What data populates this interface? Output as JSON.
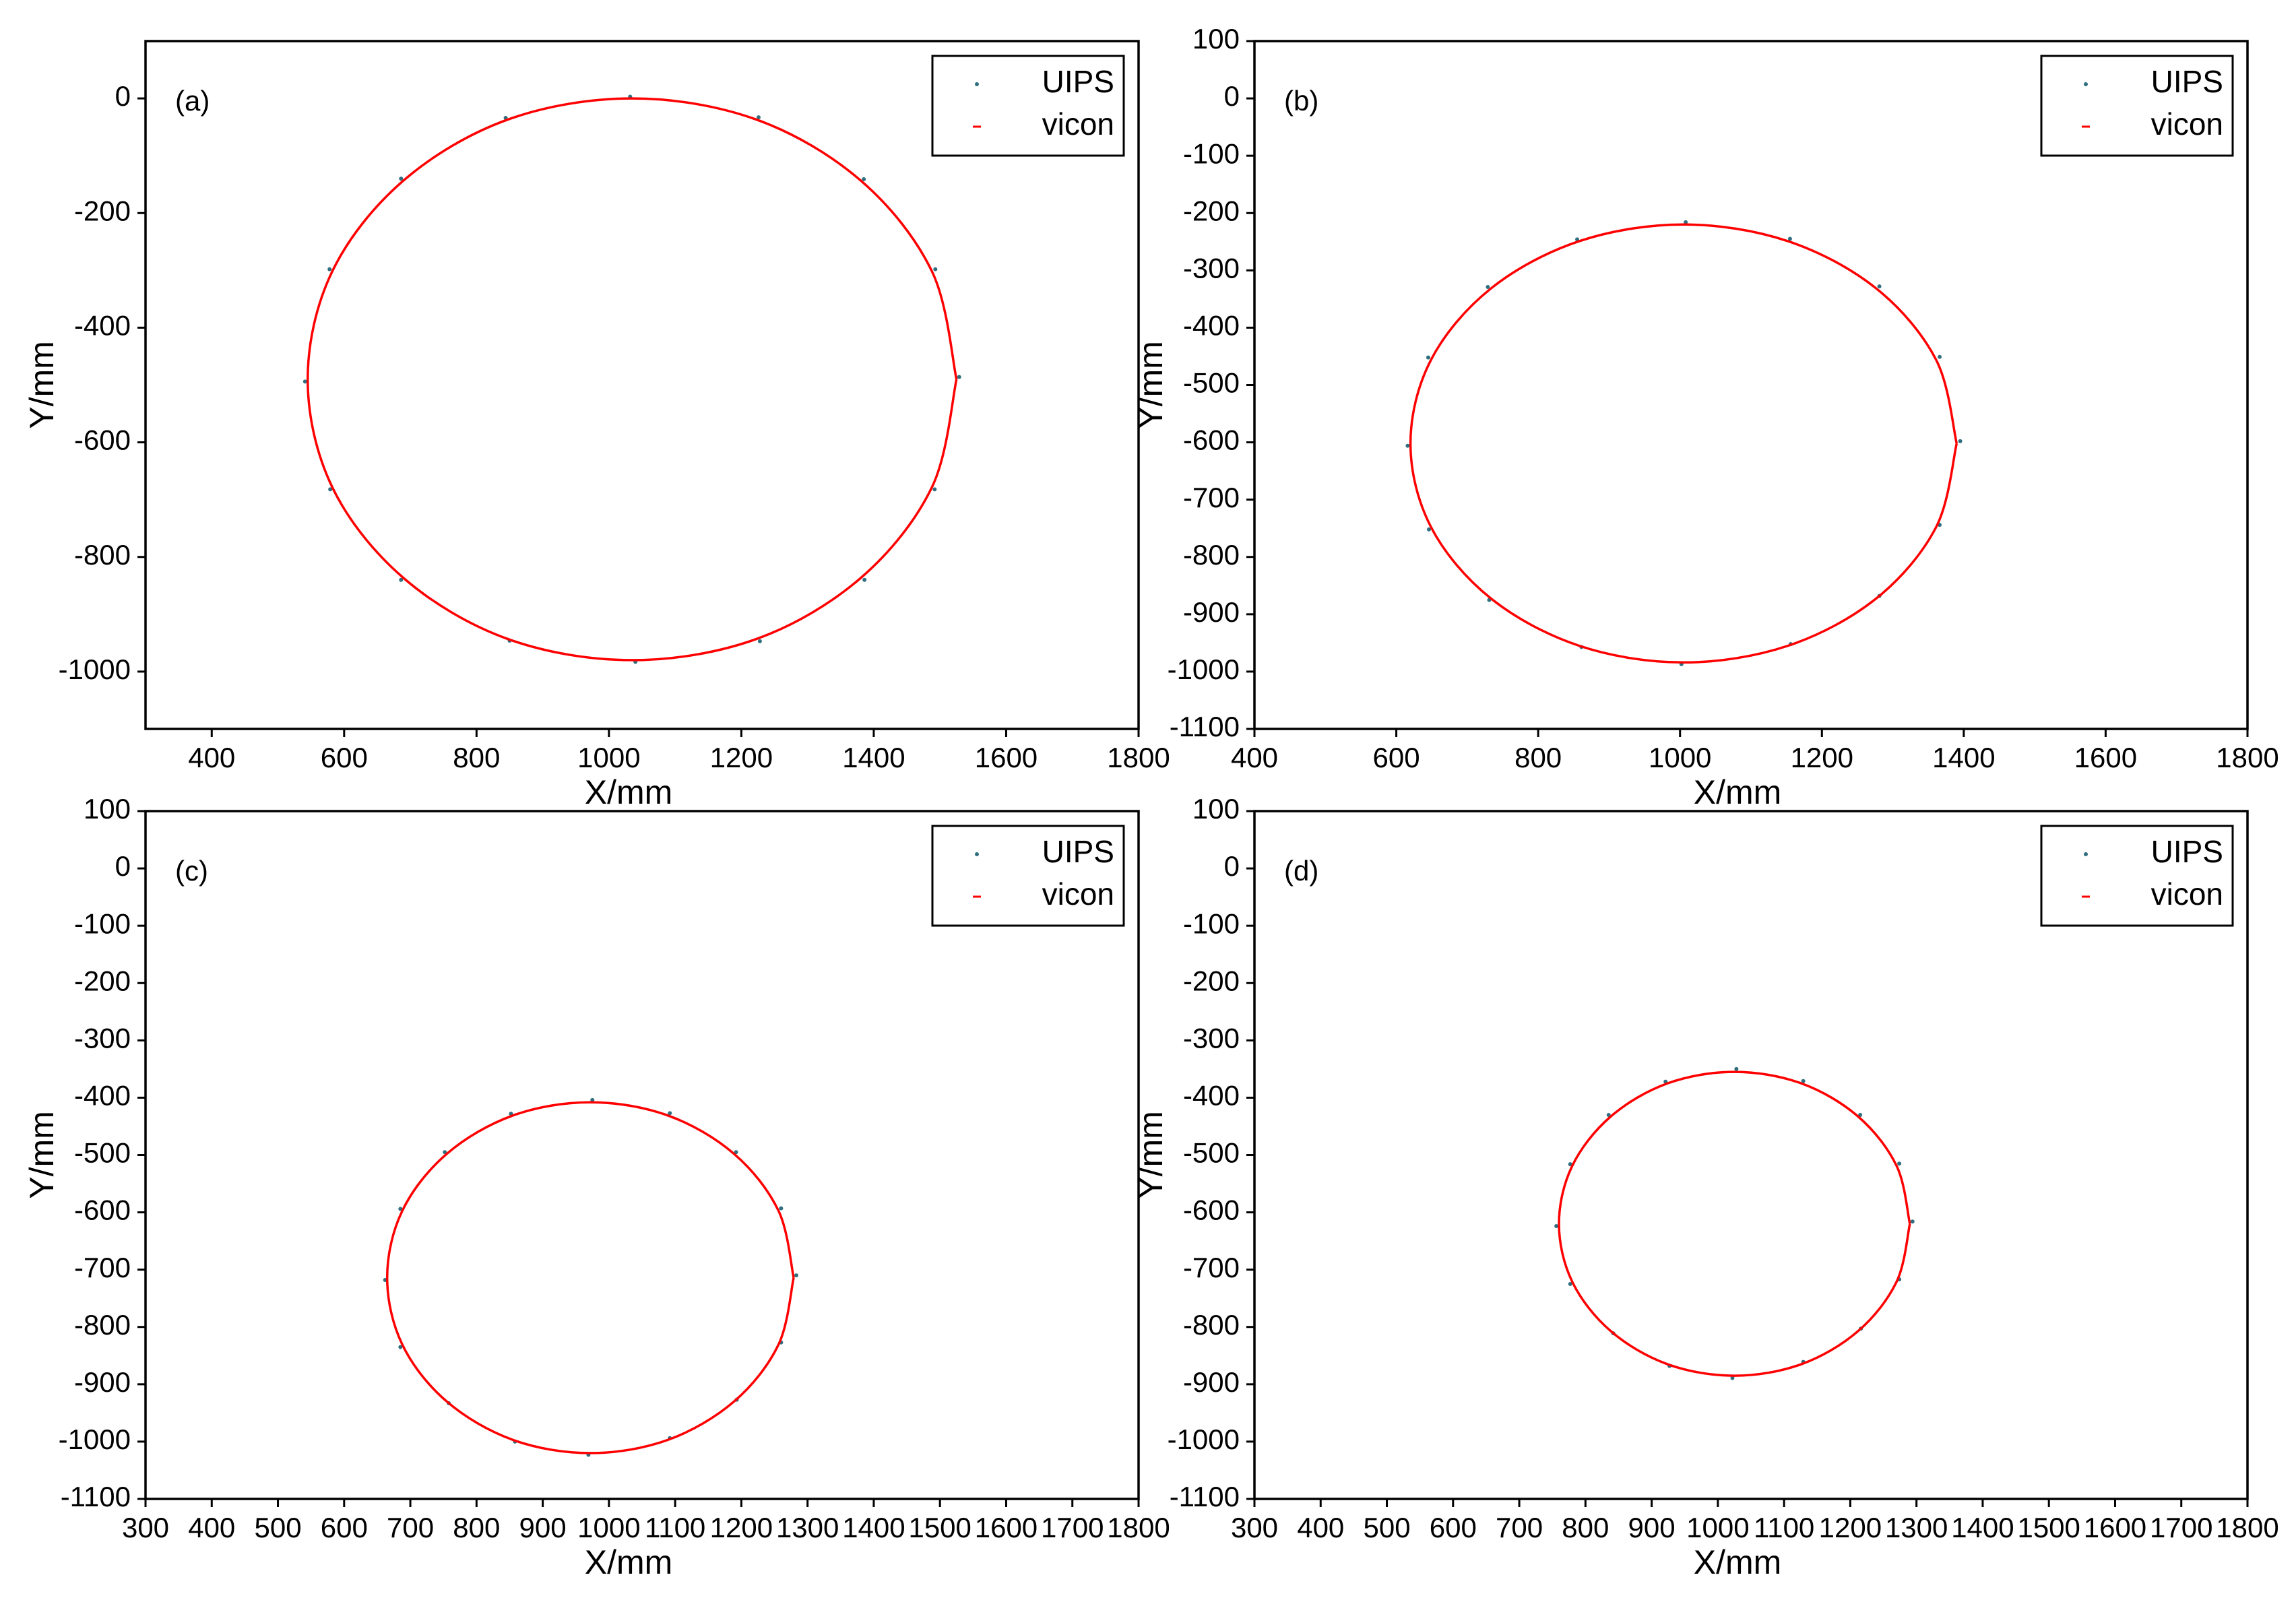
{
  "chart_data": [
    {
      "type": "scatter",
      "label": "(a)",
      "x_label": "X/mm",
      "y_label": "Y/mm",
      "xlim": [
        300,
        1800
      ],
      "xticks": [
        400,
        600,
        800,
        1000,
        1200,
        1400,
        1600,
        1800
      ],
      "ylim": [
        -1100,
        100
      ],
      "yticks": [
        0,
        -200,
        -400,
        -600,
        -800,
        -1000
      ],
      "legend": "upper right",
      "series": [
        {
          "name": "UIPS",
          "color": "#2f6f7f",
          "type": "scatter",
          "x": [
            1529,
            1493,
            1385,
            1226,
            1032,
            844,
            686,
            578,
            541,
            579,
            686,
            850,
            1040,
            1228,
            1386,
            1492
          ],
          "y": [
            -486,
            -298,
            -141,
            -33,
            3,
            -34,
            -140,
            -298,
            -494,
            -682,
            -840,
            -946,
            -983,
            -947,
            -840,
            -682
          ]
        },
        {
          "name": "vicon",
          "color": "#ff0000",
          "type": "line",
          "x": [
            1525,
            1488,
            1381,
            1223,
            1035,
            847,
            689,
            582,
            545,
            582,
            689,
            847,
            1035,
            1223,
            1381,
            1488,
            1525
          ],
          "y": [
            -490,
            -302,
            -144,
            -37,
            0,
            -37,
            -144,
            -302,
            -490,
            -678,
            -836,
            -943,
            -980,
            -943,
            -836,
            -678,
            -490
          ]
        }
      ]
    },
    {
      "type": "scatter",
      "label": "(b)",
      "x_label": "X/mm",
      "y_label": "Y/mm",
      "xlim": [
        400,
        1800
      ],
      "xticks": [
        400,
        600,
        800,
        1000,
        1200,
        1400,
        1600,
        1800
      ],
      "ylim": [
        -1100,
        100
      ],
      "yticks": [
        100,
        0,
        -100,
        -200,
        -300,
        -400,
        -500,
        -600,
        -700,
        -800,
        -900,
        -1000,
        -1100
      ],
      "legend": "upper right",
      "series": [
        {
          "name": "UIPS",
          "color": "#2f6f7f",
          "type": "scatter",
          "x": [
            1395,
            1366,
            1281,
            1155,
            1008,
            855,
            729,
            645,
            616,
            646,
            731,
            861,
            1002,
            1156,
            1281,
            1366
          ],
          "y": [
            -598,
            -451,
            -328,
            -245,
            -216,
            -246,
            -329,
            -452,
            -606,
            -752,
            -875,
            -957,
            -987,
            -952,
            -868,
            -744
          ]
        },
        {
          "name": "vicon",
          "color": "#ff0000",
          "type": "line",
          "x": [
            1390,
            1361,
            1277,
            1152,
            1005,
            858,
            733,
            649,
            620,
            649,
            733,
            858,
            1005,
            1152,
            1277,
            1361,
            1390
          ],
          "y": [
            -602,
            -456,
            -332,
            -249,
            -220,
            -249,
            -332,
            -456,
            -602,
            -748,
            -872,
            -955,
            -984,
            -955,
            -872,
            -748,
            -602
          ]
        }
      ]
    },
    {
      "type": "scatter",
      "label": "(c)",
      "x_label": "X/mm",
      "y_label": "Y/mm",
      "xlim": [
        300,
        1800
      ],
      "xticks": [
        300,
        400,
        500,
        600,
        700,
        800,
        900,
        1000,
        1100,
        1200,
        1300,
        1400,
        1500,
        1600,
        1700,
        1800
      ],
      "ylim": [
        -1100,
        100
      ],
      "yticks": [
        100,
        0,
        -100,
        -200,
        -300,
        -400,
        -500,
        -600,
        -700,
        -800,
        -900,
        -1000,
        -1100
      ],
      "legend": "upper right",
      "series": [
        {
          "name": "UIPS",
          "color": "#2f6f7f",
          "type": "scatter",
          "x": [
            1283,
            1260,
            1192,
            1092,
            975,
            852,
            752,
            685,
            662,
            685,
            758,
            858,
            969,
            1092,
            1193,
            1260
          ],
          "y": [
            -710,
            -593,
            -495,
            -427,
            -404,
            -428,
            -495,
            -594,
            -718,
            -835,
            -933,
            -1000,
            -1023,
            -994,
            -927,
            -827
          ]
        },
        {
          "name": "vicon",
          "color": "#ff0000",
          "type": "line",
          "x": [
            1279,
            1256,
            1189,
            1089,
            972,
            855,
            755,
            688,
            665,
            688,
            755,
            855,
            972,
            1089,
            1189,
            1256,
            1279
          ],
          "y": [
            -714,
            -597,
            -498,
            -431,
            -408,
            -431,
            -498,
            -597,
            -714,
            -831,
            -930,
            -997,
            -1020,
            -997,
            -930,
            -831,
            -714
          ]
        }
      ]
    },
    {
      "type": "scatter",
      "label": "(d)",
      "x_label": "X/mm",
      "y_label": "Y/mm",
      "xlim": [
        300,
        1800
      ],
      "xticks": [
        300,
        400,
        500,
        600,
        700,
        800,
        900,
        1000,
        1100,
        1200,
        1300,
        1400,
        1500,
        1600,
        1700,
        1800
      ],
      "ylim": [
        -1100,
        100
      ],
      "yticks": [
        100,
        0,
        -100,
        -200,
        -300,
        -400,
        -500,
        -600,
        -700,
        -800,
        -900,
        -1000,
        -1100
      ],
      "legend": "upper right",
      "series": [
        {
          "name": "UIPS",
          "color": "#2f6f7f",
          "type": "scatter",
          "x": [
            1294,
            1274,
            1215,
            1129,
            1028,
            921,
            835,
            777,
            756,
            777,
            842,
            927,
            1022,
            1129,
            1216,
            1274
          ],
          "y": [
            -616,
            -515,
            -430,
            -371,
            -350,
            -372,
            -430,
            -516,
            -624,
            -725,
            -811,
            -868,
            -889,
            -861,
            -803,
            -717
          ]
        },
        {
          "name": "vicon",
          "color": "#ff0000",
          "type": "line",
          "x": [
            1290,
            1270,
            1212,
            1126,
            1025,
            924,
            838,
            780,
            760,
            780,
            838,
            924,
            1025,
            1126,
            1212,
            1270,
            1290
          ],
          "y": [
            -620,
            -519,
            -433,
            -375,
            -355,
            -375,
            -433,
            -519,
            -620,
            -721,
            -807,
            -865,
            -885,
            -865,
            -807,
            -721,
            -620
          ]
        }
      ]
    }
  ]
}
